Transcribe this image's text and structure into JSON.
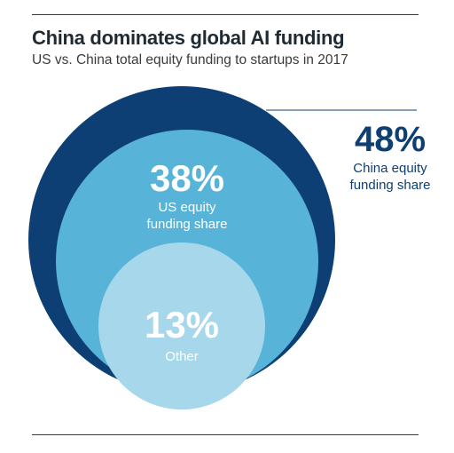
{
  "title": "China dominates global AI funding",
  "subtitle": "US vs. China total equity funding to startups in 2017",
  "chart_data": {
    "type": "nested-circles",
    "title": "China dominates global AI funding",
    "subtitle": "US vs. China total equity funding to startups in 2017",
    "unit": "%",
    "segments": [
      {
        "name": "China equity funding share",
        "value": 48,
        "label_pct": "48%",
        "label_lines": [
          "China equity",
          "funding share"
        ],
        "color": "#0e3f74"
      },
      {
        "name": "US equity funding share",
        "value": 38,
        "label_pct": "38%",
        "label_lines": [
          "US equity",
          "funding share"
        ],
        "color": "#57b3d8"
      },
      {
        "name": "Other",
        "value": 13,
        "label_pct": "13%",
        "label_lines": [
          "Other"
        ],
        "color": "#a7d7ea"
      }
    ]
  }
}
